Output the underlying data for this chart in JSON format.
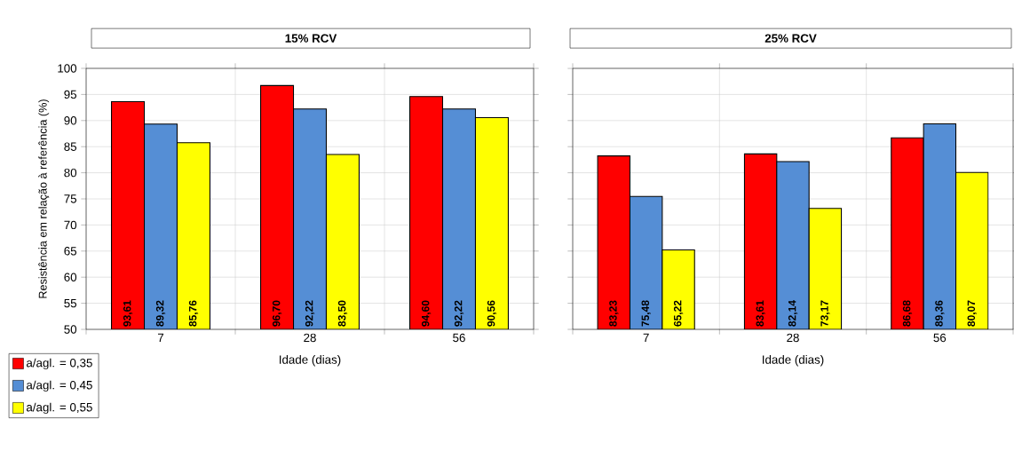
{
  "chart_data": [
    {
      "type": "bar",
      "title": "15% RCV",
      "xlabel": "Idade (dias)",
      "ylabel": "Resistência em relação à referência (%)",
      "categories": [
        "7",
        "28",
        "56"
      ],
      "series": [
        {
          "name": "a/agl. = 0,35",
          "color": "#ff0000",
          "values": [
            93.61,
            96.7,
            94.6
          ],
          "value_labels": [
            "93,61",
            "96,70",
            "94,60"
          ]
        },
        {
          "name": "a/agl. = 0,45",
          "color": "#558ed5",
          "values": [
            89.32,
            92.22,
            92.22
          ],
          "value_labels": [
            "89,32",
            "92,22",
            "92,22"
          ]
        },
        {
          "name": "a/agl. = 0,55",
          "color": "#ffff00",
          "values": [
            85.76,
            83.5,
            90.56
          ],
          "value_labels": [
            "85,76",
            "83,50",
            "90,56"
          ]
        }
      ],
      "ylim": [
        50,
        100
      ],
      "yticks": [
        50,
        55,
        60,
        65,
        70,
        75,
        80,
        85,
        90,
        95,
        100
      ],
      "grid": true,
      "legend": "bottom left"
    },
    {
      "type": "bar",
      "title": "25% RCV",
      "xlabel": "Idade (dias)",
      "categories": [
        "7",
        "28",
        "56"
      ],
      "series": [
        {
          "color": "#ff0000",
          "values": [
            83.23,
            83.61,
            86.68
          ],
          "value_labels": [
            "83,23",
            "83,61",
            "86,68"
          ]
        },
        {
          "color": "#558ed5",
          "values": [
            75.48,
            82.14,
            89.36
          ],
          "value_labels": [
            "75,48",
            "82,14",
            "89,36"
          ]
        },
        {
          "color": "#ffff00",
          "values": [
            65.22,
            73.17,
            80.07
          ],
          "value_labels": [
            "65,22",
            "73,17",
            "80,07"
          ]
        }
      ],
      "ylim": [
        50,
        100
      ],
      "yticks": [
        50,
        55,
        60,
        65,
        70,
        75,
        80,
        85,
        90,
        95,
        100
      ],
      "grid": true,
      "tick_labels": "x"
    }
  ]
}
